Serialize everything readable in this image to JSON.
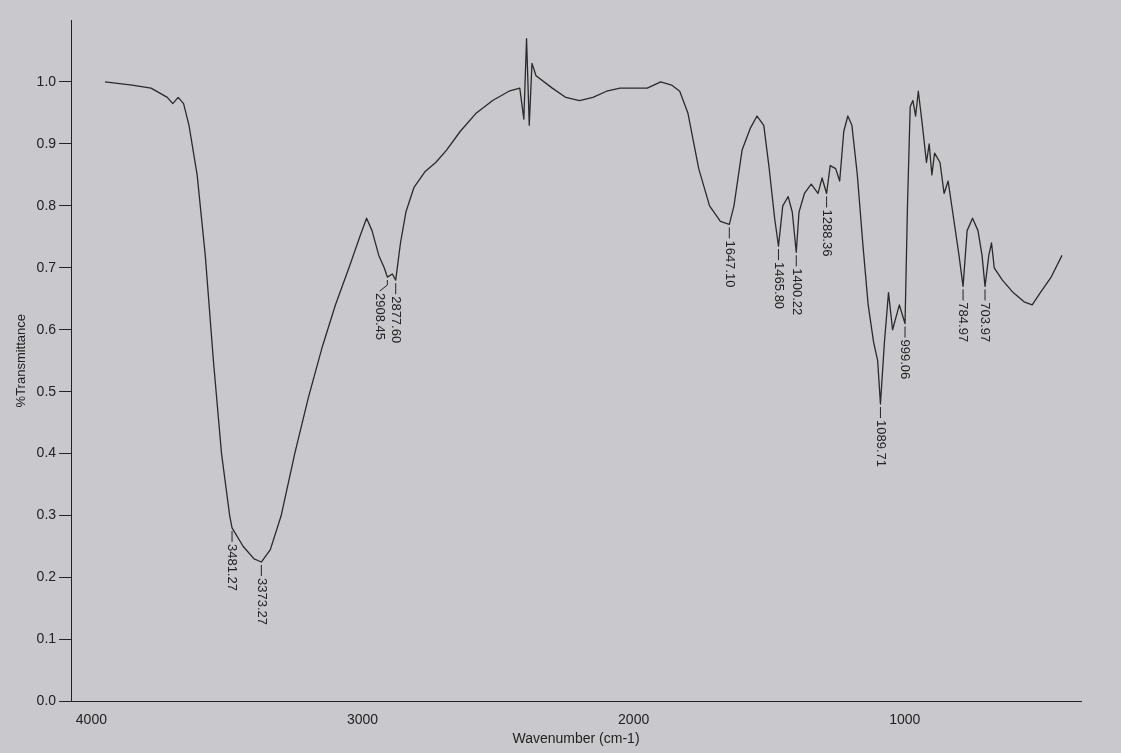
{
  "chart_data": {
    "type": "line",
    "xlabel": "Wavenumber (cm-1)",
    "ylabel": "%Transmittance",
    "xlim": [
      4075,
      350
    ],
    "xticks": [
      4000,
      3000,
      2000,
      1000
    ],
    "ylim": [
      0,
      1.1
    ],
    "yticks": [
      {
        "value": 0,
        "label": "0.0"
      },
      0.1,
      0.2,
      0.3,
      0.4,
      0.5,
      0.6,
      0.7,
      0.8,
      0.9,
      {
        "value": 1,
        "label": "1.0"
      }
    ],
    "grid": false,
    "legend": false,
    "marker": "none",
    "line_style": "solid",
    "series": [
      {
        "color": "#2a2a2a",
        "x": [
          3950,
          3850,
          3780,
          3720,
          3700,
          3680,
          3660,
          3640,
          3610,
          3580,
          3550,
          3520,
          3490,
          3481.27,
          3440,
          3400,
          3373.27,
          3340,
          3300,
          3250,
          3200,
          3150,
          3100,
          3050,
          3010,
          2985,
          2965,
          2940,
          2920,
          2908.45,
          2890,
          2877.6,
          2860,
          2840,
          2810,
          2770,
          2730,
          2690,
          2640,
          2580,
          2520,
          2460,
          2420,
          2405,
          2395,
          2385,
          2375,
          2360,
          2300,
          2250,
          2200,
          2150,
          2100,
          2050,
          2000,
          1950,
          1900,
          1860,
          1830,
          1800,
          1760,
          1720,
          1680,
          1647.1,
          1630,
          1600,
          1570,
          1545,
          1520,
          1500,
          1480,
          1465.8,
          1450,
          1430,
          1415,
          1400.22,
          1390,
          1370,
          1345,
          1320,
          1305,
          1288.36,
          1275,
          1255,
          1240,
          1225,
          1210,
          1195,
          1175,
          1155,
          1135,
          1115,
          1100,
          1089.71,
          1075,
          1060,
          1045,
          1020,
          999.06,
          990,
          980,
          970,
          960,
          950,
          935,
          920,
          910,
          900,
          890,
          870,
          855,
          840,
          820,
          800,
          784.97,
          770,
          750,
          730,
          715,
          703.97,
          690,
          680,
          670,
          640,
          600,
          560,
          530,
          500,
          460,
          420
        ],
        "values": [
          1.0,
          0.995,
          0.99,
          0.975,
          0.965,
          0.975,
          0.965,
          0.93,
          0.85,
          0.72,
          0.55,
          0.4,
          0.3,
          0.28,
          0.25,
          0.23,
          0.225,
          0.245,
          0.3,
          0.4,
          0.49,
          0.57,
          0.64,
          0.7,
          0.75,
          0.78,
          0.76,
          0.72,
          0.7,
          0.685,
          0.69,
          0.68,
          0.74,
          0.79,
          0.83,
          0.855,
          0.87,
          0.89,
          0.92,
          0.95,
          0.97,
          0.985,
          0.99,
          0.94,
          1.07,
          0.93,
          1.03,
          1.01,
          0.99,
          0.975,
          0.97,
          0.975,
          0.985,
          0.99,
          0.99,
          0.99,
          1.0,
          0.995,
          0.985,
          0.95,
          0.86,
          0.8,
          0.775,
          0.77,
          0.8,
          0.89,
          0.925,
          0.945,
          0.93,
          0.86,
          0.78,
          0.735,
          0.8,
          0.815,
          0.79,
          0.725,
          0.79,
          0.82,
          0.835,
          0.82,
          0.845,
          0.82,
          0.865,
          0.86,
          0.84,
          0.92,
          0.945,
          0.93,
          0.85,
          0.74,
          0.64,
          0.58,
          0.55,
          0.48,
          0.58,
          0.66,
          0.6,
          0.64,
          0.61,
          0.8,
          0.96,
          0.97,
          0.945,
          0.985,
          0.93,
          0.87,
          0.9,
          0.85,
          0.885,
          0.87,
          0.82,
          0.84,
          0.78,
          0.72,
          0.67,
          0.76,
          0.78,
          0.76,
          0.72,
          0.67,
          0.72,
          0.74,
          0.7,
          0.68,
          0.66,
          0.645,
          0.64,
          0.66,
          0.685,
          0.72
        ]
      }
    ],
    "annotations": [
      {
        "text": "3481.27",
        "x": 3481.27,
        "y": 0.28
      },
      {
        "text": "3373.27",
        "x": 3373.27,
        "y": 0.225
      },
      {
        "text": "2908.45",
        "x": 2908.45,
        "y": 0.685
      },
      {
        "text": "2877.60",
        "x": 2877.6,
        "y": 0.68
      },
      {
        "text": "1647.10",
        "x": 1647.1,
        "y": 0.77
      },
      {
        "text": "1465.80",
        "x": 1465.8,
        "y": 0.735
      },
      {
        "text": "1400.22",
        "x": 1400.22,
        "y": 0.725
      },
      {
        "text": "1288.36",
        "x": 1288.36,
        "y": 0.82
      },
      {
        "text": "1089.71",
        "x": 1089.71,
        "y": 0.48
      },
      {
        "text": "999.06",
        "x": 999.06,
        "y": 0.61
      },
      {
        "text": "784.97",
        "x": 784.97,
        "y": 0.67
      },
      {
        "text": "703.97",
        "x": 703.97,
        "y": 0.67
      }
    ]
  }
}
